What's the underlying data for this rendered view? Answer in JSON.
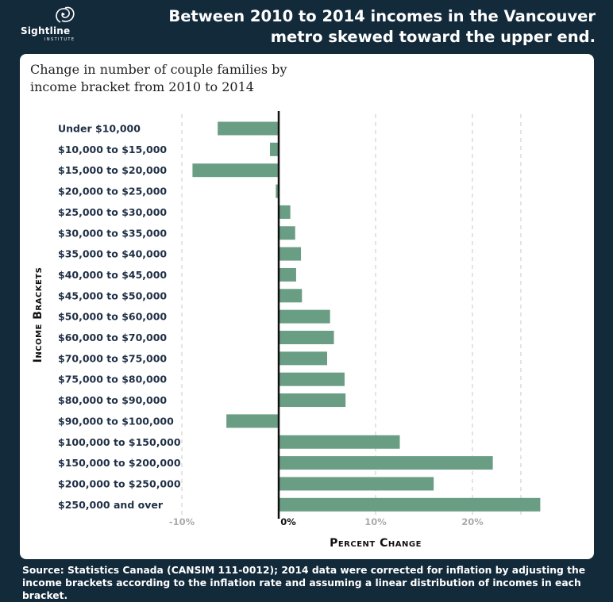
{
  "header": {
    "logo_name": "Sightline",
    "logo_sub": "INSTITUTE",
    "logo_mark": "sightline-swirl-logo",
    "headline_line1": "Between 2010 to 2014 incomes in the Vancouver",
    "headline_line2": "metro skewed toward the upper end."
  },
  "chart_title": "Change in number of couple families by income bracket from 2010 to 2014",
  "footer": {
    "source": "Source: Statistics Canada (CANSIM 111-0012); 2014 data were corrected for inflation by adjusting the income brackets according to the inflation rate and assuming a linear distribution of incomes in each bracket."
  },
  "colors": {
    "background": "#132a3b",
    "bar": "#6a9e84",
    "axis": "#111111",
    "grid": "#c9c9c9"
  },
  "chart_data": {
    "type": "bar",
    "orientation": "horizontal",
    "title": "Change in number of couple families by income bracket from 2010 to 2014",
    "xlabel": "Percent Change",
    "ylabel": "Income Brackets",
    "xlim": [
      -15,
      30
    ],
    "xticks": [
      -10,
      0,
      10,
      20
    ],
    "xtick_labels": [
      "-10%",
      "0%",
      "10%",
      "20%"
    ],
    "grid": "vertical dashed at -15, -5, 5, 15, 25, 30",
    "categories": [
      "Under $10,000",
      "$10,000 to $15,000",
      "$15,000 to $20,000",
      "$20,000 to $25,000",
      "$25,000 to $30,000",
      "$30,000 to $35,000",
      "$35,000 to $40,000",
      "$40,000 to $45,000",
      "$45,000 to $50,000",
      "$50,000 to $60,000",
      "$60,000 to $70,000",
      "$70,000 to $75,000",
      "$75,000 to $80,000",
      "$80,000 to $90,000",
      "$90,000 to $100,000",
      "$100,000 to $150,000",
      "$150,000 to $200,000",
      "$200,000 to $250,000",
      "$250,000 and over"
    ],
    "values": [
      -6.3,
      -0.9,
      -8.9,
      -0.3,
      1.2,
      1.7,
      2.3,
      1.8,
      2.4,
      5.3,
      5.7,
      5.0,
      6.8,
      6.9,
      -5.4,
      12.5,
      22.1,
      16.0,
      27.0
    ]
  }
}
